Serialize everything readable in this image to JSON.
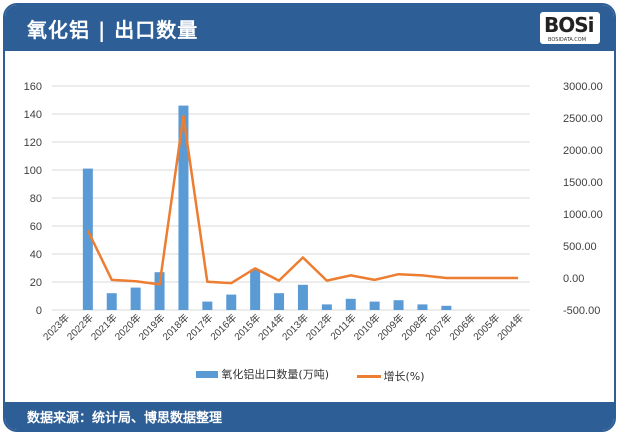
{
  "header": {
    "title": "氧化铝 | 出口数量",
    "logo_text": "BOSi",
    "logo_sub": "BOSIDATA.COM"
  },
  "footer": {
    "source": "数据来源：统计局、博思数据整理"
  },
  "legend": {
    "bar_label": "氧化铝出口数量(万吨)",
    "line_label": "增长(%)"
  },
  "colors": {
    "bar": "#5b9bd5",
    "line": "#ed7d31",
    "header": "#2e5e96"
  },
  "chart_data": {
    "type": "bar+line",
    "title": "氧化铝 | 出口数量",
    "categories": [
      "2023年",
      "2022年",
      "2021年",
      "2020年",
      "2019年",
      "2018年",
      "2017年",
      "2016年",
      "2015年",
      "2014年",
      "2013年",
      "2012年",
      "2011年",
      "2010年",
      "2009年",
      "2008年",
      "2007年",
      "2006年",
      "2005年",
      "2004年"
    ],
    "series": [
      {
        "name": "氧化铝出口数量(万吨)",
        "type": "bar",
        "axis": "left",
        "values": [
          0,
          101,
          12,
          16,
          27,
          146,
          6,
          11,
          29,
          12,
          18,
          4,
          8,
          6,
          7,
          4,
          3,
          0,
          0,
          0
        ]
      },
      {
        "name": "增长(%)",
        "type": "line",
        "axis": "right",
        "values": [
          null,
          740,
          -30,
          -50,
          -100,
          2530,
          -60,
          -80,
          150,
          -40,
          320,
          -40,
          40,
          -30,
          60,
          40,
          0,
          0,
          0,
          0
        ]
      }
    ],
    "left_axis": {
      "min": 0,
      "max": 160,
      "ticks": [
        "0",
        "20",
        "40",
        "60",
        "80",
        "100",
        "120",
        "140",
        "160"
      ]
    },
    "right_axis": {
      "min": -500,
      "max": 3000,
      "ticks": [
        "-500.00",
        "0.00",
        "500.00",
        "1000.00",
        "1500.00",
        "2000.00",
        "2500.00",
        "3000.00"
      ]
    },
    "grid": true,
    "legend_position": "bottom"
  }
}
